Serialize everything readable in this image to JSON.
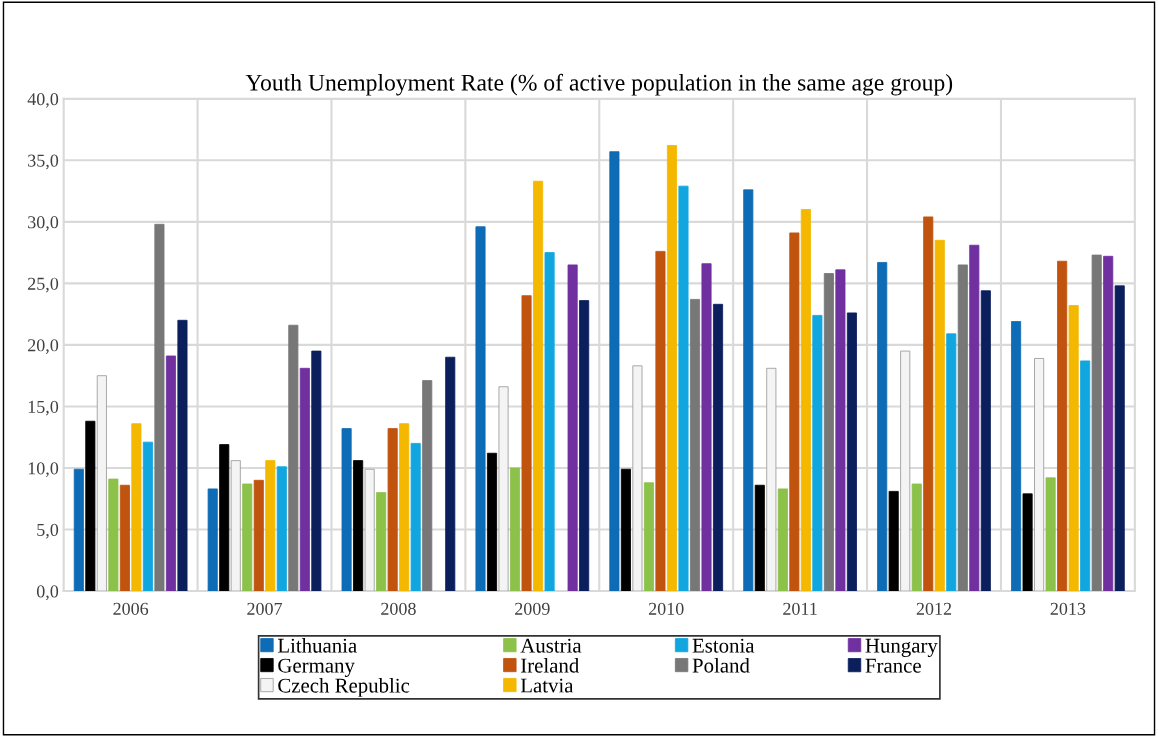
{
  "chart_data": {
    "type": "bar",
    "title": "Youth Unemployment Rate (% of active population in the same age group)",
    "categories": [
      "2006",
      "2007",
      "2008",
      "2009",
      "2010",
      "2011",
      "2012",
      "2013"
    ],
    "series": [
      {
        "name": "Lithuania",
        "color": "#0e6bb5",
        "values": [
          9.9,
          8.3,
          13.2,
          29.6,
          35.7,
          32.6,
          26.7,
          21.9
        ]
      },
      {
        "name": "Germany",
        "color": "#000000",
        "values": [
          13.8,
          11.9,
          10.6,
          11.2,
          9.9,
          8.6,
          8.1,
          7.9
        ]
      },
      {
        "name": "Czech Republic",
        "color": "#f4f4f4",
        "values": [
          17.5,
          10.6,
          9.9,
          16.6,
          18.3,
          18.1,
          19.5,
          18.9
        ]
      },
      {
        "name": "Austria",
        "color": "#8cc14a",
        "values": [
          9.1,
          8.7,
          8.0,
          10.0,
          8.8,
          8.3,
          8.7,
          9.2
        ]
      },
      {
        "name": "Ireland",
        "color": "#c0530e",
        "values": [
          8.6,
          9.0,
          13.2,
          24.0,
          27.6,
          29.1,
          30.4,
          26.8
        ]
      },
      {
        "name": "Latvia",
        "color": "#f4b800",
        "values": [
          13.6,
          10.6,
          13.6,
          33.3,
          36.2,
          31.0,
          28.5,
          23.2
        ]
      },
      {
        "name": "Estonia",
        "color": "#12a6e0",
        "values": [
          12.1,
          10.1,
          12.0,
          27.5,
          32.9,
          22.4,
          20.9,
          18.7
        ]
      },
      {
        "name": "Poland",
        "color": "#777777",
        "values": [
          29.8,
          21.6,
          17.1,
          null,
          23.7,
          25.8,
          26.5,
          27.3
        ]
      },
      {
        "name": "Hungary",
        "color": "#7030a0",
        "values": [
          19.1,
          18.1,
          null,
          26.5,
          26.6,
          26.1,
          28.1,
          27.2
        ]
      },
      {
        "name": "France",
        "color": "#0b1f5c",
        "values": [
          22.0,
          19.5,
          19.0,
          23.6,
          23.3,
          22.6,
          24.4,
          24.8
        ]
      }
    ],
    "ylim": [
      0,
      40
    ],
    "yticks": [
      {
        "value": 0,
        "label": "0,0"
      },
      {
        "value": 5,
        "label": "5,0"
      },
      {
        "value": 10,
        "label": "10,0"
      },
      {
        "value": 15,
        "label": "15,0"
      },
      {
        "value": 20,
        "label": "20,0"
      },
      {
        "value": 25,
        "label": "25,0"
      },
      {
        "value": 30,
        "label": "30,0"
      },
      {
        "value": 35,
        "label": "35,0"
      },
      {
        "value": 40,
        "label": "40,0"
      }
    ],
    "grid": true,
    "legend": "bottom"
  }
}
